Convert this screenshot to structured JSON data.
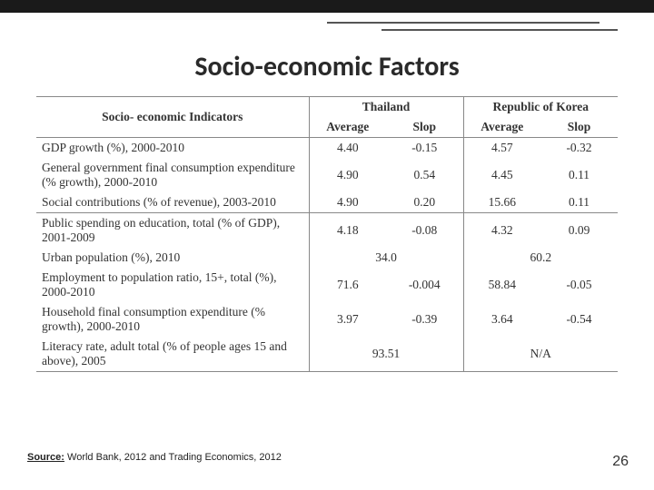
{
  "title": "Socio-economic Factors",
  "header": {
    "indicators": "Socio- economic Indicators",
    "country1": "Thailand",
    "country2": "Republic of Korea",
    "avg": "Average",
    "slop": "Slop"
  },
  "sectionA": [
    {
      "label": "GDP growth (%), 2000-2010",
      "th_avg": "4.40",
      "th_slop": "-0.15",
      "kr_avg": "4.57",
      "kr_slop": "-0.32",
      "span": ""
    },
    {
      "label": "General government final consumption expenditure (% growth), 2000-2010",
      "th_avg": "4.90",
      "th_slop": "0.54",
      "kr_avg": "4.45",
      "kr_slop": "0.11",
      "span": ""
    },
    {
      "label": "Social contributions (% of revenue), 2003-2010",
      "th_avg": "4.90",
      "th_slop": "0.20",
      "kr_avg": "15.66",
      "kr_slop": "0.11",
      "span": ""
    }
  ],
  "sectionB": [
    {
      "label": "Public spending on education, total (% of GDP), 2001-2009",
      "th_avg": "4.18",
      "th_slop": "-0.08",
      "kr_avg": "4.32",
      "kr_slop": "0.09",
      "span": ""
    },
    {
      "label": "Urban population (%), 2010",
      "th_avg": "",
      "th_slop": "",
      "kr_avg": "",
      "kr_slop": "",
      "span": "single",
      "th_single": "34.0",
      "kr_single": "60.2"
    },
    {
      "label": "Employment to population ratio, 15+, total (%), 2000-2010",
      "th_avg": "71.6",
      "th_slop": "-0.004",
      "kr_avg": "58.84",
      "kr_slop": "-0.05",
      "span": ""
    },
    {
      "label": "Household final consumption expenditure (% growth), 2000-2010",
      "th_avg": "3.97",
      "th_slop": "-0.39",
      "kr_avg": "3.64",
      "kr_slop": "-0.54",
      "span": ""
    },
    {
      "label": "Literacy rate, adult total (% of people ages 15 and above), 2005",
      "th_avg": "",
      "th_slop": "",
      "kr_avg": "",
      "kr_slop": "",
      "span": "single",
      "th_single": "93.51",
      "kr_single": "N/A"
    }
  ],
  "source_label": "Source:",
  "source_text": " World Bank, 2012 and Trading Economics, 2012",
  "page_number": "26",
  "colors": {
    "top_bar": "#1a1a1a",
    "line": "#555555",
    "border": "#888888",
    "text": "#333333",
    "bg": "#ffffff"
  },
  "typography": {
    "title_fontsize": 30,
    "table_fontsize": 13.5,
    "source_fontsize": 11,
    "pagenum_fontsize": 16
  }
}
